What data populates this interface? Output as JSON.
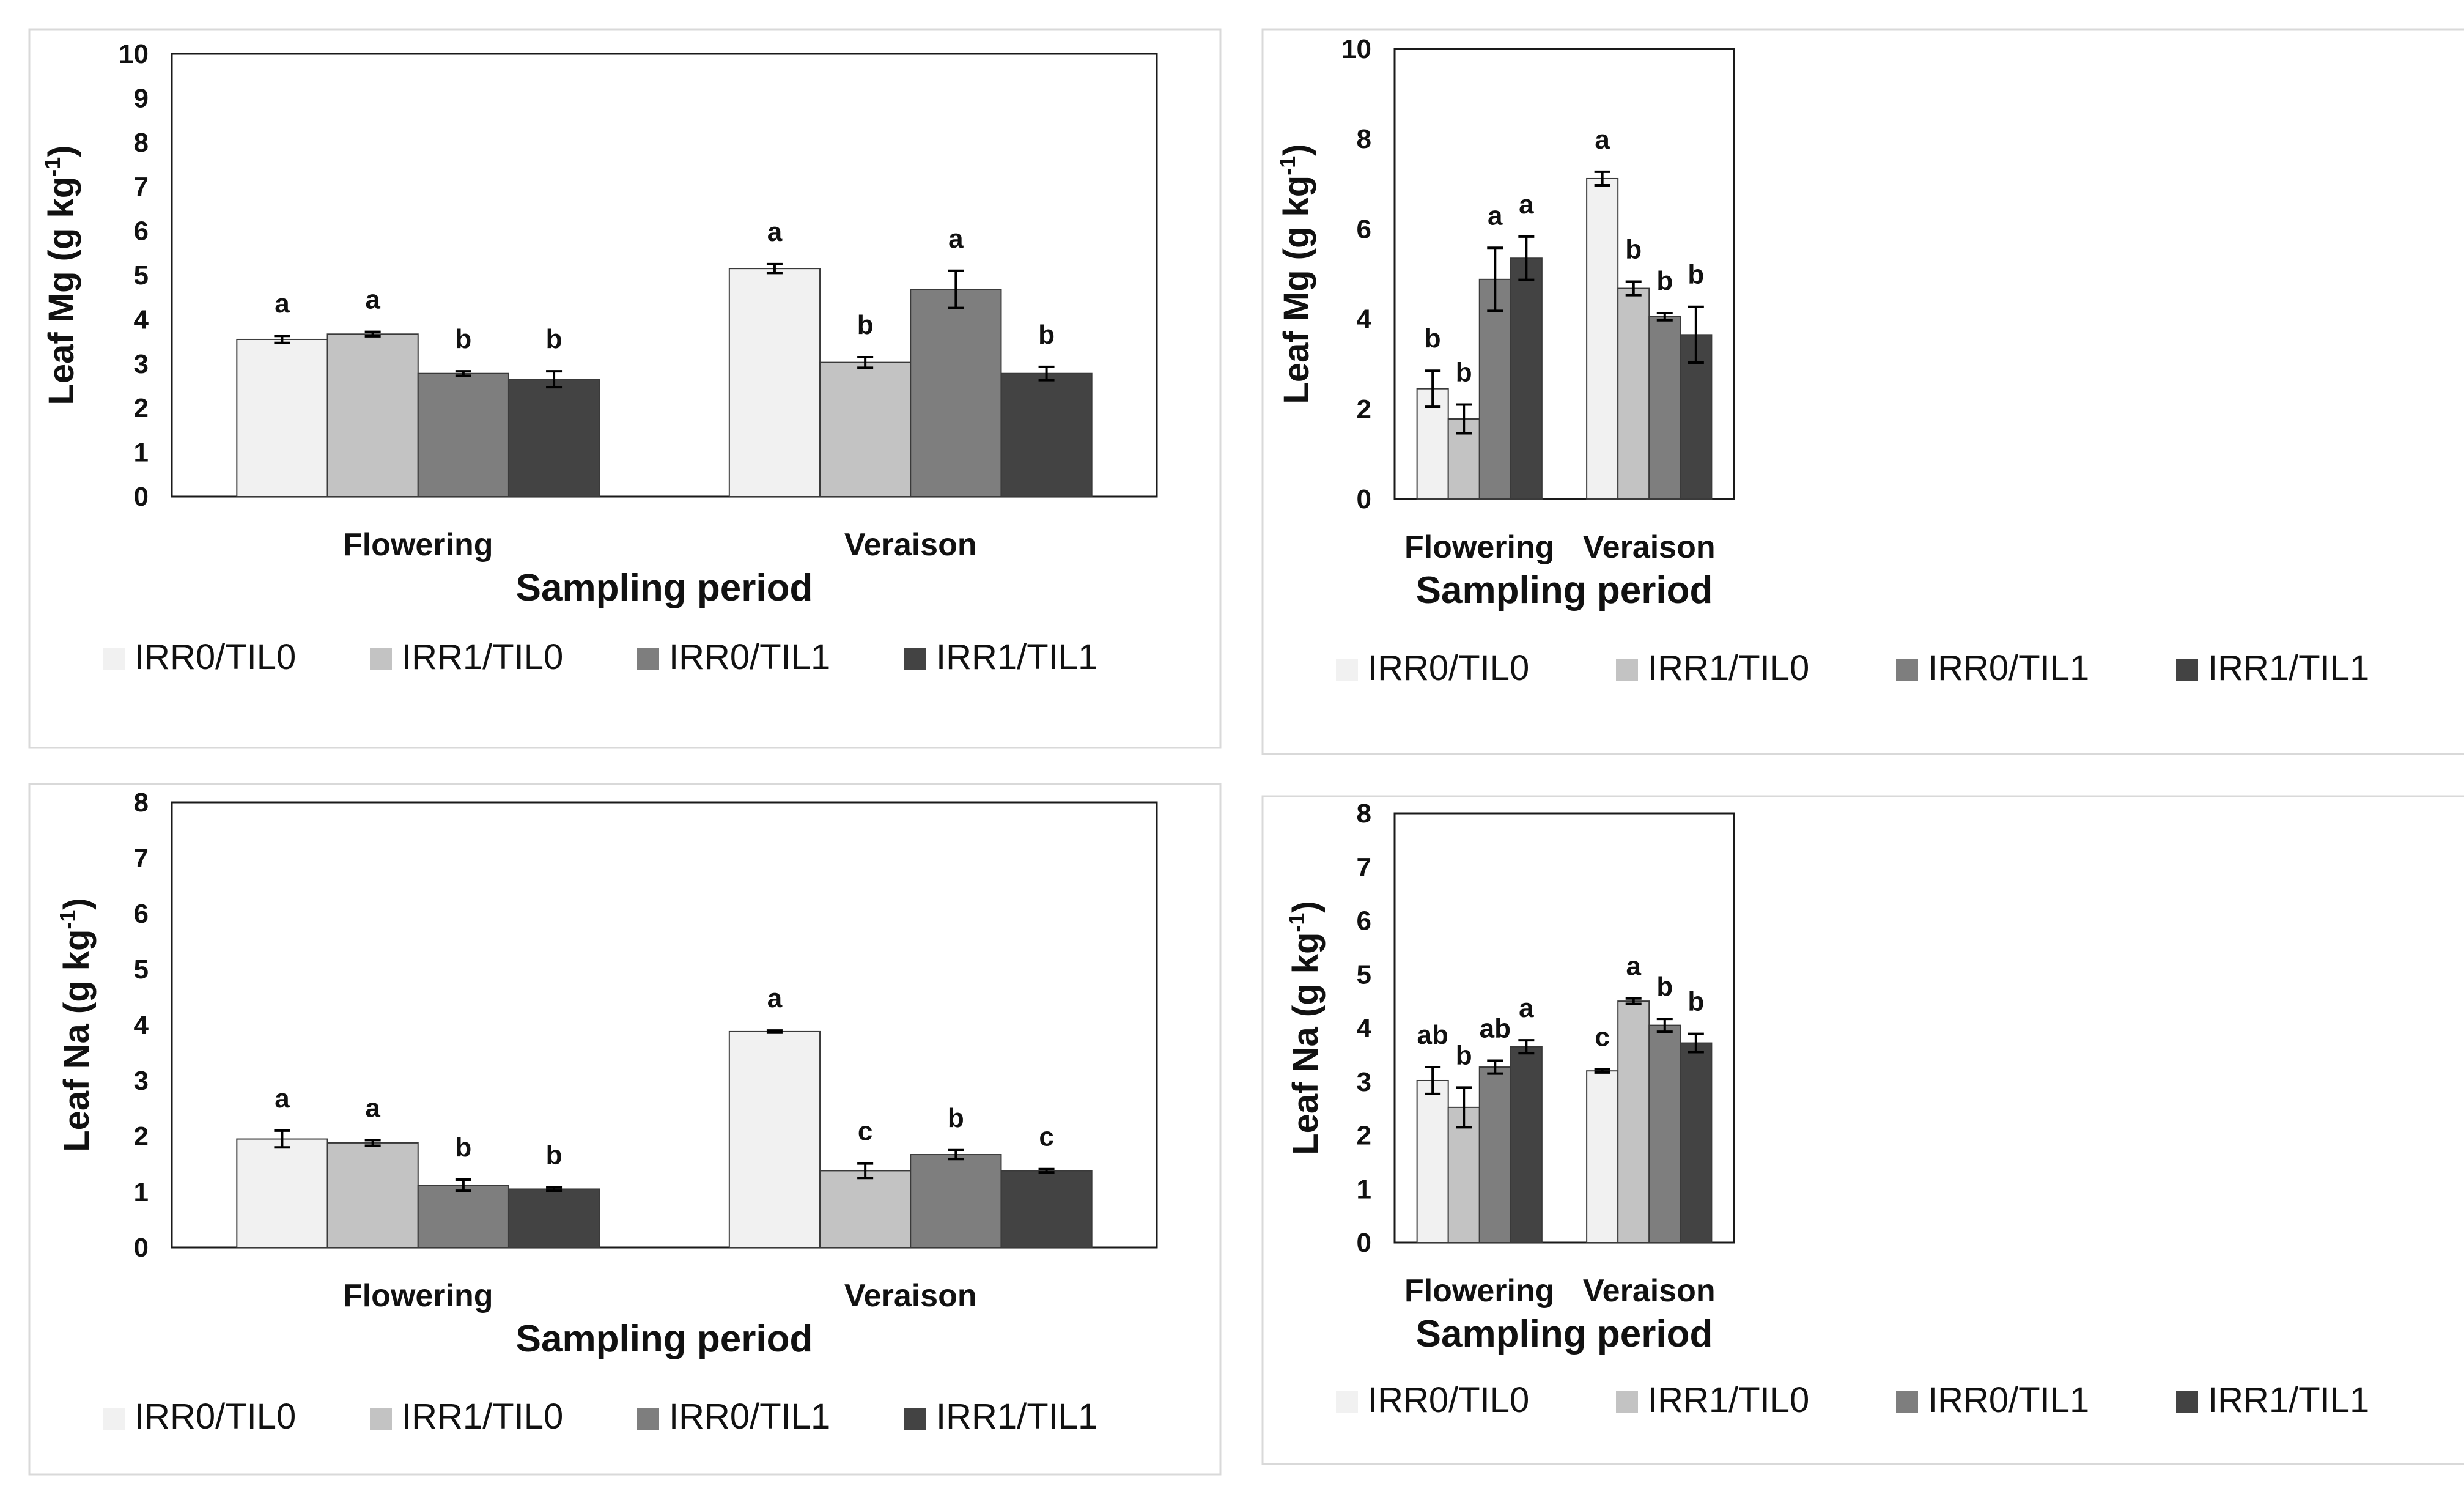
{
  "chart_data": [
    {
      "type": "bar",
      "title": "",
      "xlabel": "Sampling period",
      "ylabel_main": "Leaf Mg (g kg",
      "ylabel_sup": "-1",
      "ylabel_close": ")",
      "categories": [
        "Flowering",
        "Veraison"
      ],
      "ylim": [
        0,
        10
      ],
      "yticks": [
        0,
        1,
        2,
        3,
        4,
        5,
        6,
        7,
        8,
        9,
        10
      ],
      "series": [
        {
          "name": "IRR0/TIL0",
          "values": [
            3.55,
            5.15
          ],
          "errors": [
            0.08,
            0.1
          ],
          "letters": [
            "a",
            "a"
          ]
        },
        {
          "name": "IRR1/TIL0",
          "values": [
            3.67,
            3.03
          ],
          "errors": [
            0.05,
            0.12
          ],
          "letters": [
            "a",
            "b"
          ]
        },
        {
          "name": "IRR0/TIL1",
          "values": [
            2.78,
            4.68
          ],
          "errors": [
            0.05,
            0.42
          ],
          "letters": [
            "b",
            "a"
          ]
        },
        {
          "name": "IRR1/TIL1",
          "values": [
            2.65,
            2.78
          ],
          "errors": [
            0.18,
            0.15
          ],
          "letters": [
            "b",
            "b"
          ]
        }
      ]
    },
    {
      "type": "bar",
      "title": "",
      "xlabel": "Sampling period",
      "ylabel_main": "Leaf Mg (g kg",
      "ylabel_sup": "-1",
      "ylabel_close": ")",
      "categories": [
        "Flowering",
        "Veraison"
      ],
      "ylim": [
        0,
        10
      ],
      "yticks": [
        0,
        2,
        4,
        6,
        8,
        10
      ],
      "series": [
        {
          "name": "IRR0/TIL0",
          "values": [
            2.45,
            7.12
          ],
          "errors": [
            0.4,
            0.15
          ],
          "letters": [
            "b",
            "a"
          ]
        },
        {
          "name": "IRR1/TIL0",
          "values": [
            1.78,
            4.68
          ],
          "errors": [
            0.32,
            0.15
          ],
          "letters": [
            "b",
            "b"
          ]
        },
        {
          "name": "IRR0/TIL1",
          "values": [
            4.88,
            4.05
          ],
          "errors": [
            0.7,
            0.08
          ],
          "letters": [
            "a",
            "b"
          ]
        },
        {
          "name": "IRR1/TIL1",
          "values": [
            5.35,
            3.65
          ],
          "errors": [
            0.48,
            0.62
          ],
          "letters": [
            "a",
            "b"
          ]
        }
      ]
    },
    {
      "type": "bar",
      "title": "",
      "xlabel": "Sampling period",
      "ylabel_main": "Leaf Na (g kg",
      "ylabel_sup": "-1",
      "ylabel_close": ")",
      "categories": [
        "Flowering",
        "Veraison"
      ],
      "ylim": [
        0,
        8
      ],
      "yticks": [
        0,
        1,
        2,
        3,
        4,
        5,
        6,
        7,
        8
      ],
      "series": [
        {
          "name": "IRR0/TIL0",
          "values": [
            1.95,
            3.88
          ],
          "errors": [
            0.15,
            0.02
          ],
          "letters": [
            "a",
            "a"
          ]
        },
        {
          "name": "IRR1/TIL0",
          "values": [
            1.88,
            1.38
          ],
          "errors": [
            0.05,
            0.13
          ],
          "letters": [
            "a",
            "c"
          ]
        },
        {
          "name": "IRR0/TIL1",
          "values": [
            1.12,
            1.67
          ],
          "errors": [
            0.1,
            0.08
          ],
          "letters": [
            "b",
            "b"
          ]
        },
        {
          "name": "IRR1/TIL1",
          "values": [
            1.05,
            1.38
          ],
          "errors": [
            0.03,
            0.03
          ],
          "letters": [
            "b",
            "c"
          ]
        }
      ]
    },
    {
      "type": "bar",
      "title": "",
      "xlabel": "Sampling period",
      "ylabel_main": "Leaf Na (g kg",
      "ylabel_sup": "-1",
      "ylabel_close": ")",
      "categories": [
        "Flowering",
        "Veraison"
      ],
      "ylim": [
        0,
        8
      ],
      "yticks": [
        0,
        1,
        2,
        3,
        4,
        5,
        6,
        7,
        8
      ],
      "series": [
        {
          "name": "IRR0/TIL0",
          "values": [
            3.02,
            3.2
          ],
          "errors": [
            0.25,
            0.03
          ],
          "letters": [
            "ab",
            "c"
          ]
        },
        {
          "name": "IRR1/TIL0",
          "values": [
            2.52,
            4.5
          ],
          "errors": [
            0.37,
            0.05
          ],
          "letters": [
            "b",
            "a"
          ]
        },
        {
          "name": "IRR0/TIL1",
          "values": [
            3.27,
            4.05
          ],
          "errors": [
            0.12,
            0.12
          ],
          "letters": [
            "ab",
            "b"
          ]
        },
        {
          "name": "IRR1/TIL1",
          "values": [
            3.65,
            3.72
          ],
          "errors": [
            0.12,
            0.17
          ],
          "letters": [
            "a",
            "b"
          ]
        }
      ]
    }
  ],
  "colors": {
    "series": [
      "#f1f1f1",
      "#c3c3c3",
      "#7e7e7e",
      "#434343"
    ],
    "bar_stroke": "#3a3a3a",
    "frame": "#1a1a1a",
    "panel_border": "#d9d9d9",
    "text": "#111111"
  }
}
